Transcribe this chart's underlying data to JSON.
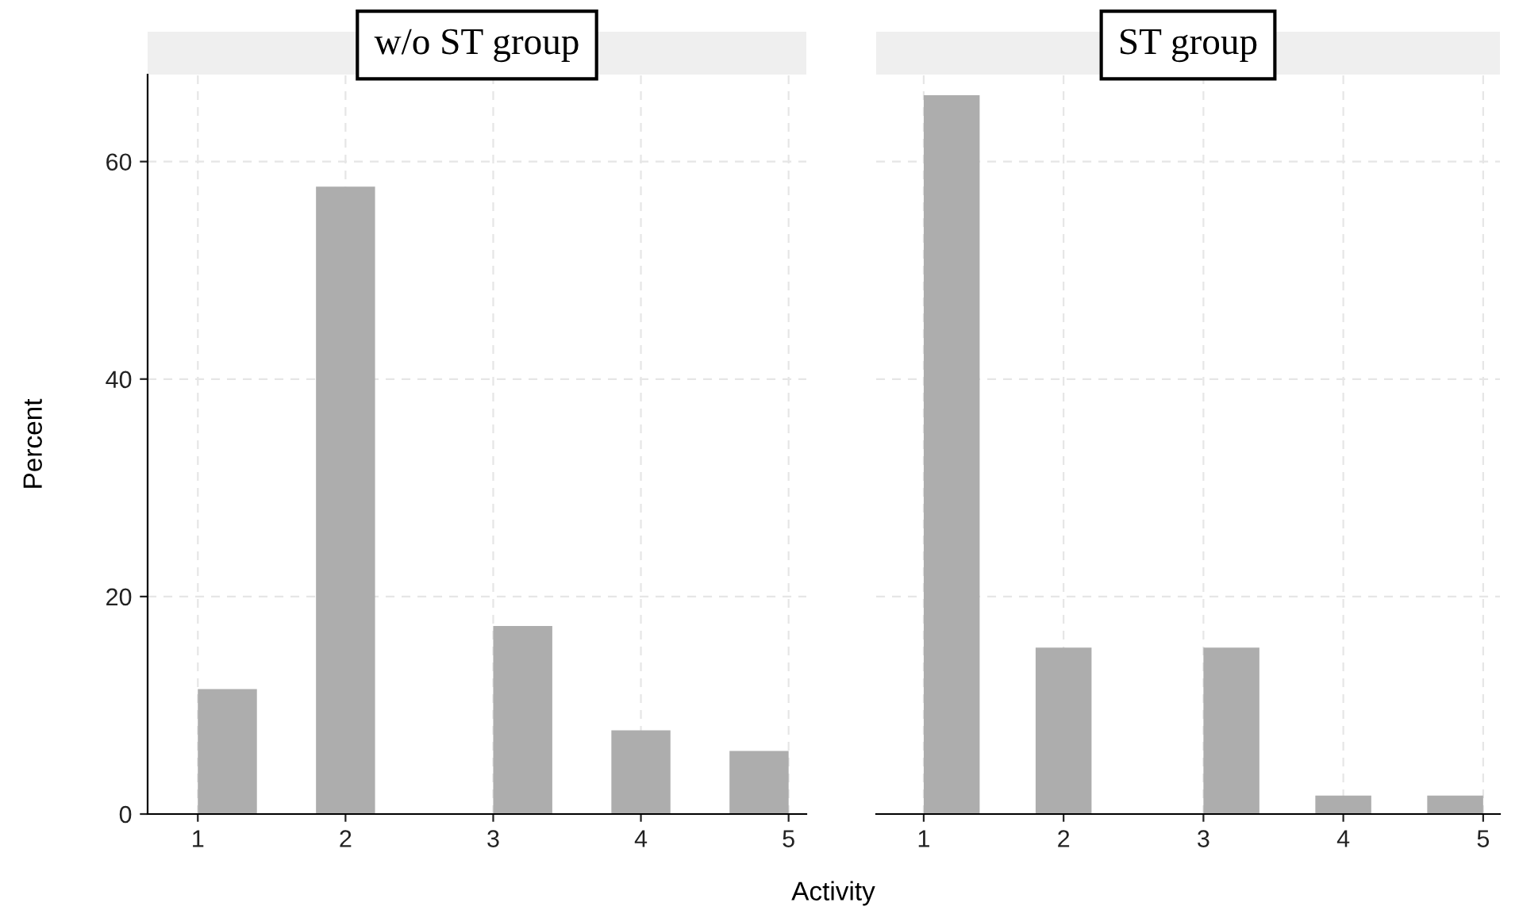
{
  "chart_data": [
    {
      "type": "histogram",
      "title": "w/o ST group",
      "ylabel": "Percent",
      "xlabel": "Activity",
      "bins": [
        1,
        1.4,
        1.8,
        2.2,
        2.6,
        3.0,
        3.4,
        3.8,
        4.2,
        4.6,
        5.0
      ],
      "values": [
        11.5,
        0,
        57.7,
        0,
        0,
        17.3,
        0,
        7.7,
        0,
        5.8
      ],
      "color": "#adadad",
      "xlim": [
        0.66,
        5.12
      ],
      "xticks": [
        1,
        2,
        3,
        4,
        5
      ],
      "ylim": [
        0,
        68
      ],
      "yticks": [
        0,
        20,
        40,
        60
      ],
      "grid": true
    },
    {
      "type": "histogram",
      "title": "ST group",
      "bins": [
        1,
        1.4,
        1.8,
        2.2,
        2.6,
        3.0,
        3.4,
        3.8,
        4.2,
        4.6,
        5.0
      ],
      "values": [
        66.1,
        0,
        15.3,
        0,
        0,
        15.3,
        0,
        1.7,
        0,
        1.7
      ],
      "color": "#adadad",
      "xlim": [
        0.66,
        5.12
      ],
      "xticks": [
        1,
        2,
        3,
        4,
        5
      ],
      "ylim": [
        0,
        68
      ],
      "yticks": [
        0,
        20,
        40,
        60
      ],
      "grid": true,
      "tick_labels": "x"
    }
  ]
}
